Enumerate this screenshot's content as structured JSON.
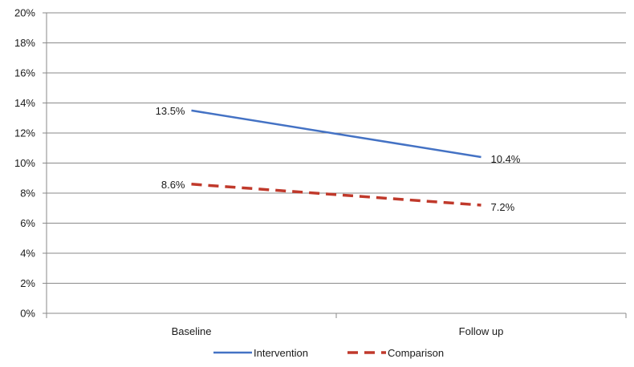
{
  "chart_data": {
    "type": "line",
    "categories": [
      "Baseline",
      "Follow up"
    ],
    "series": [
      {
        "name": "Intervention",
        "values": [
          13.5,
          10.4
        ],
        "labels": [
          "13.5%",
          "10.4%"
        ],
        "color": "#4472C4",
        "dash": "solid"
      },
      {
        "name": "Comparison",
        "values": [
          8.6,
          7.2
        ],
        "labels": [
          "8.6%",
          "7.2%"
        ],
        "color": "#C0392B",
        "dash": "dashed"
      }
    ],
    "title": "",
    "xlabel": "",
    "ylabel": "",
    "ylim": [
      0,
      20
    ],
    "y_ticks": [
      "0%",
      "2%",
      "4%",
      "6%",
      "8%",
      "10%",
      "12%",
      "14%",
      "16%",
      "18%",
      "20%"
    ],
    "grid": true,
    "legend": "bottom"
  }
}
